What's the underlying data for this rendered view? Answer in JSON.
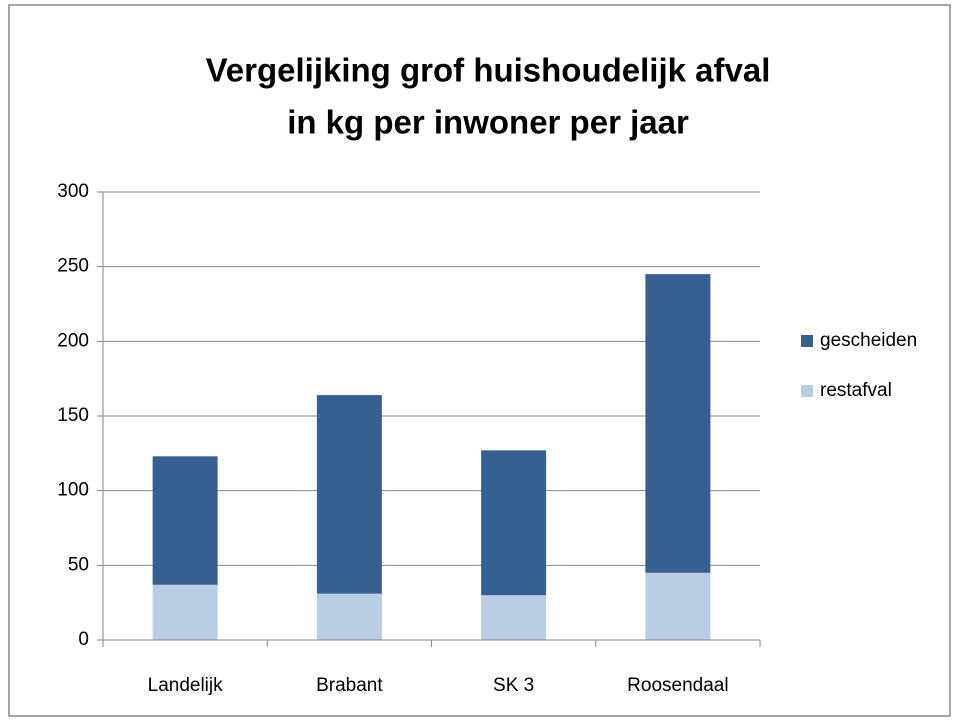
{
  "chart_data": {
    "type": "bar",
    "stacked": true,
    "title": [
      "Vergelijking grof huishoudelijk afval",
      "in kg per inwoner per jaar"
    ],
    "categories": [
      "Landelijk",
      "Brabant",
      "SK 3",
      "Roosendaal"
    ],
    "series": [
      {
        "name": "restafval",
        "color": "#b9cde5",
        "values": [
          37,
          31,
          30,
          45
        ]
      },
      {
        "name": "gescheiden",
        "color": "#376092",
        "values": [
          86,
          133,
          97,
          200
        ]
      }
    ],
    "ylim": [
      0,
      300
    ],
    "yticks": [
      0,
      50,
      100,
      150,
      200,
      250,
      300
    ],
    "grid": true,
    "legend": "right"
  }
}
